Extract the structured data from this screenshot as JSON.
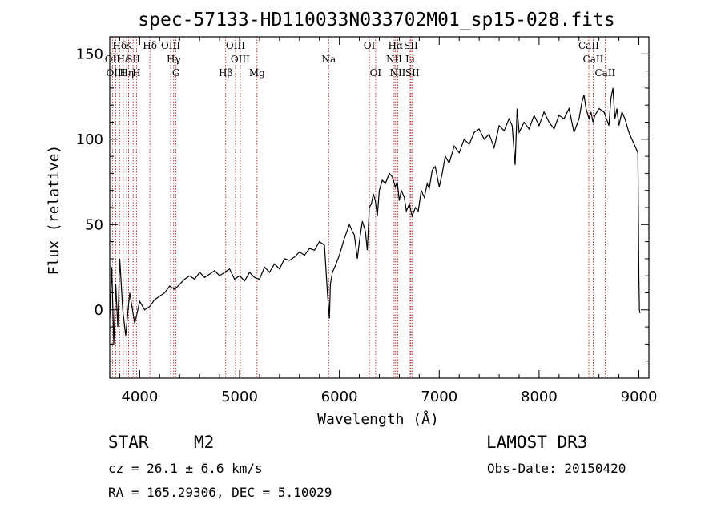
{
  "chart_data": {
    "type": "line",
    "title": "spec-57133-HD110033N033702M01_sp15-028.fits",
    "xlabel": "Wavelength (Å)",
    "ylabel": "Flux (relative)",
    "xlim": [
      3700,
      9100
    ],
    "ylim": [
      -40,
      160
    ],
    "xticks": [
      4000,
      5000,
      6000,
      7000,
      8000,
      9000
    ],
    "yticks": [
      0,
      50,
      100,
      150
    ],
    "grid": false,
    "line_color": "#000000",
    "marker_color": "#b22222",
    "series": [
      {
        "name": "spectrum",
        "x": [
          3700,
          3720,
          3740,
          3760,
          3780,
          3800,
          3830,
          3860,
          3900,
          3950,
          4000,
          4050,
          4100,
          4150,
          4200,
          4250,
          4300,
          4350,
          4400,
          4450,
          4500,
          4550,
          4600,
          4650,
          4700,
          4750,
          4800,
          4850,
          4900,
          4950,
          5000,
          5050,
          5100,
          5150,
          5200,
          5250,
          5300,
          5350,
          5400,
          5450,
          5500,
          5550,
          5600,
          5650,
          5700,
          5750,
          5800,
          5850,
          5880,
          5900,
          5910,
          5930,
          5960,
          6000,
          6050,
          6100,
          6130,
          6150,
          6180,
          6200,
          6230,
          6260,
          6280,
          6300,
          6320,
          6340,
          6360,
          6380,
          6400,
          6430,
          6460,
          6500,
          6530,
          6560,
          6580,
          6600,
          6620,
          6650,
          6670,
          6700,
          6730,
          6760,
          6790,
          6820,
          6850,
          6880,
          6900,
          6930,
          6960,
          7000,
          7030,
          7060,
          7100,
          7150,
          7200,
          7250,
          7300,
          7350,
          7400,
          7450,
          7500,
          7550,
          7600,
          7650,
          7700,
          7730,
          7760,
          7780,
          7800,
          7850,
          7900,
          7950,
          8000,
          8050,
          8100,
          8150,
          8200,
          8250,
          8300,
          8350,
          8400,
          8430,
          8450,
          8470,
          8500,
          8520,
          8540,
          8560,
          8600,
          8650,
          8700,
          8720,
          8740,
          8760,
          8780,
          8800,
          8830,
          8860,
          8900,
          8930,
          8960,
          8990,
          9000,
          9005,
          9010
        ],
        "y": [
          -5,
          25,
          -20,
          15,
          -10,
          30,
          0,
          -15,
          10,
          -8,
          5,
          0,
          2,
          6,
          8,
          10,
          14,
          12,
          15,
          18,
          20,
          18,
          22,
          19,
          21,
          23,
          20,
          22,
          24,
          18,
          20,
          17,
          22,
          19,
          18,
          25,
          22,
          27,
          24,
          30,
          29,
          31,
          34,
          32,
          36,
          35,
          40,
          38,
          10,
          -5,
          15,
          22,
          26,
          32,
          42,
          50,
          46,
          44,
          30,
          40,
          52,
          46,
          35,
          60,
          62,
          68,
          64,
          55,
          70,
          76,
          74,
          80,
          78,
          72,
          75,
          64,
          70,
          66,
          58,
          62,
          55,
          60,
          58,
          70,
          66,
          74,
          71,
          82,
          84,
          72,
          80,
          90,
          86,
          96,
          92,
          100,
          97,
          104,
          106,
          100,
          103,
          95,
          108,
          105,
          112,
          108,
          85,
          118,
          104,
          110,
          106,
          114,
          108,
          116,
          110,
          106,
          114,
          112,
          118,
          104,
          112,
          122,
          126,
          118,
          112,
          116,
          110,
          114,
          118,
          116,
          108,
          124,
          130,
          112,
          118,
          108,
          116,
          112,
          104,
          100,
          96,
          92,
          20,
          0,
          -2
        ]
      }
    ],
    "line_markers": [
      {
        "label": "Hδ",
        "x": 3798,
        "row": 0
      },
      {
        "label": "OII",
        "x": 3727,
        "row": 1
      },
      {
        "label": "OIII",
        "x": 3760,
        "row": 2
      },
      {
        "label": "Hε",
        "x": 3835,
        "row": 1
      },
      {
        "label": "K",
        "x": 3889,
        "row": 0
      },
      {
        "label": "Hη",
        "x": 3870,
        "row": 2
      },
      {
        "label": "SII",
        "x": 3934,
        "row": 1
      },
      {
        "label": "H",
        "x": 3968,
        "row": 2
      },
      {
        "label": "Hδ",
        "x": 4102,
        "row": 0
      },
      {
        "label": "OIII",
        "x": 4310,
        "row": 0
      },
      {
        "label": "Hγ",
        "x": 4340,
        "row": 1
      },
      {
        "label": "G",
        "x": 4363,
        "row": 2
      },
      {
        "label": "Hβ",
        "x": 4861,
        "row": 2
      },
      {
        "label": "OIII",
        "x": 4959,
        "row": 0
      },
      {
        "label": "OIII",
        "x": 5007,
        "row": 1
      },
      {
        "label": "Mg",
        "x": 5175,
        "row": 2
      },
      {
        "label": "Na",
        "x": 5893,
        "row": 1
      },
      {
        "label": "OI",
        "x": 6300,
        "row": 0
      },
      {
        "label": "OI",
        "x": 6363,
        "row": 2
      },
      {
        "label": "Hα",
        "x": 6563,
        "row": 0
      },
      {
        "label": "NII",
        "x": 6548,
        "row": 1
      },
      {
        "label": "NII",
        "x": 6584,
        "row": 2
      },
      {
        "label": "SII",
        "x": 6716,
        "row": 0
      },
      {
        "label": "Li",
        "x": 6708,
        "row": 1
      },
      {
        "label": "SII",
        "x": 6731,
        "row": 2
      },
      {
        "label": "CaII",
        "x": 8498,
        "row": 0
      },
      {
        "label": "CaII",
        "x": 8542,
        "row": 1
      },
      {
        "label": "CaII",
        "x": 8662,
        "row": 2
      }
    ]
  },
  "info": {
    "object_class": "STAR",
    "subclass": "M2",
    "survey": "LAMOST DR3",
    "cz": "cz = 26.1 ± 6.6 km/s",
    "obs_date": "Obs-Date: 20150420",
    "coords": "RA = 165.29306, DEC =    5.10029"
  }
}
